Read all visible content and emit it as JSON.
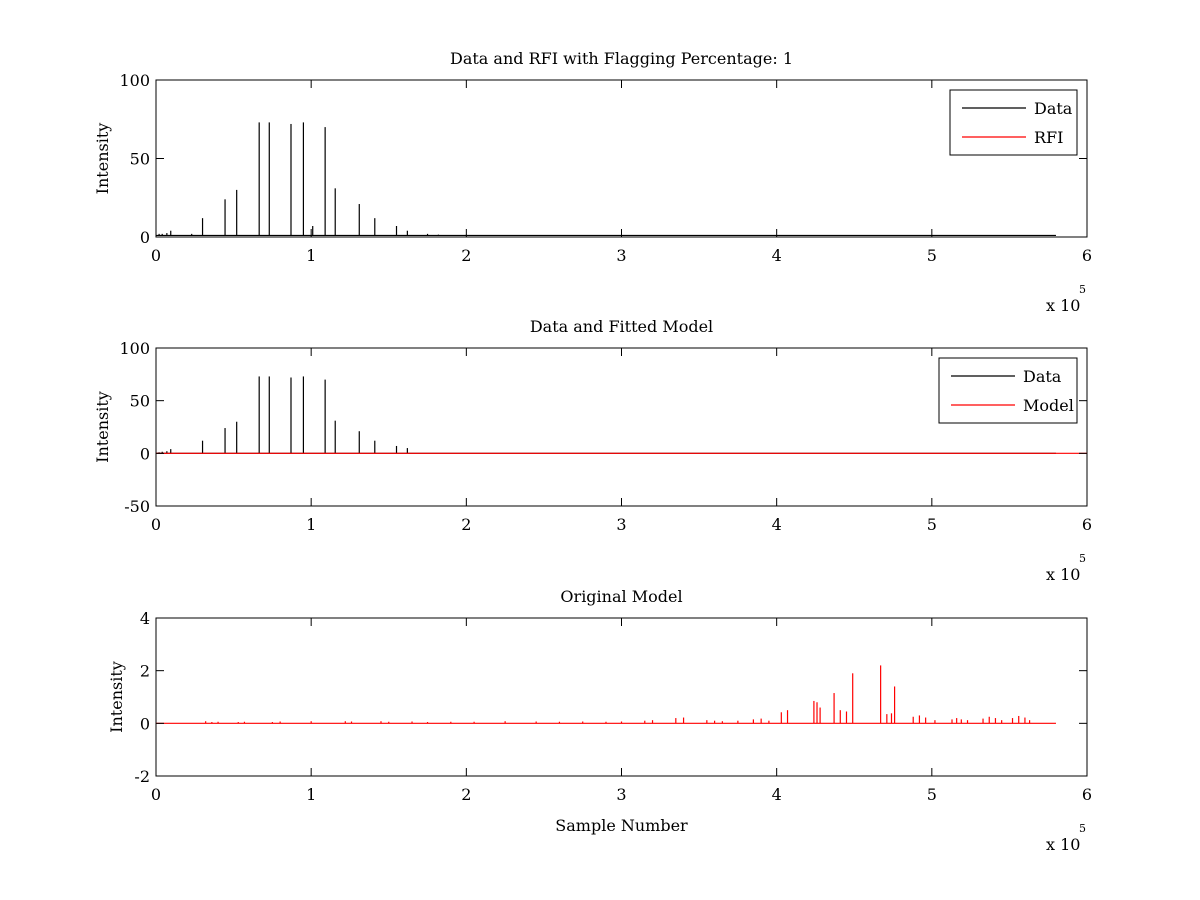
{
  "chart_data": [
    {
      "type": "line",
      "title": "Data and RFI with Flagging Percentage: 1",
      "xlabel": "",
      "ylabel": "Intensity",
      "xlim": [
        0,
        600000
      ],
      "ylim": [
        0,
        100
      ],
      "xticks": [
        0,
        1,
        2,
        3,
        4,
        5,
        6
      ],
      "yticks": [
        0,
        50,
        100
      ],
      "x_exponent": {
        "base": "x 10",
        "power": "5"
      },
      "grid": false,
      "legend_position": "top-right",
      "series": [
        {
          "name": "Data",
          "color": "#000000",
          "baseline": 1,
          "x": [
            2000,
            4000,
            7000,
            9500,
            23000,
            30000,
            44500,
            52000,
            66500,
            73000,
            87000,
            95000,
            101000,
            109000,
            115500,
            131000,
            141000,
            155000,
            162000,
            175000,
            182000,
            200000,
            225000,
            270000
          ],
          "y": [
            2,
            2,
            2.5,
            4,
            2,
            12,
            24,
            30,
            73,
            73,
            72,
            73,
            7,
            70,
            31,
            21,
            12,
            7,
            4,
            2,
            1.5,
            1.5,
            1.2,
            1.2
          ]
        },
        {
          "name": "RFI",
          "color": "#ff0000",
          "baseline": 0,
          "x": [],
          "y": []
        }
      ]
    },
    {
      "type": "line",
      "title": "Data and Fitted Model",
      "xlabel": "",
      "ylabel": "Intensity",
      "xlim": [
        0,
        600000
      ],
      "ylim": [
        -50,
        100
      ],
      "xticks": [
        0,
        1,
        2,
        3,
        4,
        5,
        6
      ],
      "yticks": [
        -50,
        0,
        50,
        100
      ],
      "x_exponent": {
        "base": "x 10",
        "power": "5"
      },
      "grid": false,
      "legend_position": "top-right",
      "series": [
        {
          "name": "Data",
          "color": "#000000",
          "baseline": 0,
          "x": [
            2000,
            4000,
            7000,
            9500,
            30000,
            44500,
            52000,
            66500,
            73000,
            87000,
            95000,
            109000,
            115500,
            131000,
            141000,
            155000,
            162000
          ],
          "y": [
            1,
            1.5,
            2,
            4,
            12,
            24,
            30,
            73,
            73,
            72,
            73,
            70,
            31,
            21,
            12,
            7,
            5
          ]
        },
        {
          "name": "Model",
          "color": "#ff0000",
          "baseline": 0,
          "x": [
            0,
            600000
          ],
          "y": [
            0,
            0
          ]
        }
      ]
    },
    {
      "type": "line",
      "title": "Original Model",
      "xlabel": "Sample Number",
      "ylabel": "Intensity",
      "xlim": [
        0,
        600000
      ],
      "ylim": [
        -2,
        4
      ],
      "xticks": [
        0,
        1,
        2,
        3,
        4,
        5,
        6
      ],
      "yticks": [
        -2,
        0,
        2,
        4
      ],
      "x_exponent": {
        "base": "x 10",
        "power": "5"
      },
      "grid": false,
      "legend_position": "none",
      "series": [
        {
          "name": "",
          "color": "#ff0000",
          "baseline": 0,
          "x": [
            32000,
            36000,
            40000,
            53000,
            57000,
            75000,
            80000,
            100000,
            122000,
            126000,
            145000,
            150000,
            165000,
            175000,
            190000,
            205000,
            225000,
            245000,
            260000,
            275000,
            290000,
            300000,
            315000,
            320000,
            335000,
            340000,
            355000,
            360000,
            365000,
            375000,
            385000,
            390000,
            395000,
            403000,
            407000,
            424000,
            426000,
            428000,
            437000,
            441000,
            445000,
            449000,
            467000,
            471000,
            474000,
            476000,
            488000,
            492000,
            496000,
            502000,
            513000,
            516000,
            519000,
            523000,
            533000,
            537000,
            541000,
            545000,
            552000,
            556000,
            560000,
            563000
          ],
          "y": [
            0.08,
            0.05,
            0.06,
            0.05,
            0.06,
            0.05,
            0.07,
            0.08,
            0.08,
            0.07,
            0.08,
            0.06,
            0.07,
            0.05,
            0.06,
            0.06,
            0.08,
            0.07,
            0.06,
            0.07,
            0.06,
            0.07,
            0.1,
            0.12,
            0.2,
            0.22,
            0.12,
            0.1,
            0.08,
            0.1,
            0.15,
            0.18,
            0.1,
            0.42,
            0.5,
            0.85,
            0.8,
            0.6,
            1.15,
            0.5,
            0.45,
            1.9,
            2.2,
            0.35,
            0.38,
            1.4,
            0.25,
            0.3,
            0.22,
            0.12,
            0.15,
            0.2,
            0.15,
            0.12,
            0.18,
            0.25,
            0.2,
            0.12,
            0.2,
            0.28,
            0.22,
            0.12
          ]
        }
      ]
    }
  ]
}
